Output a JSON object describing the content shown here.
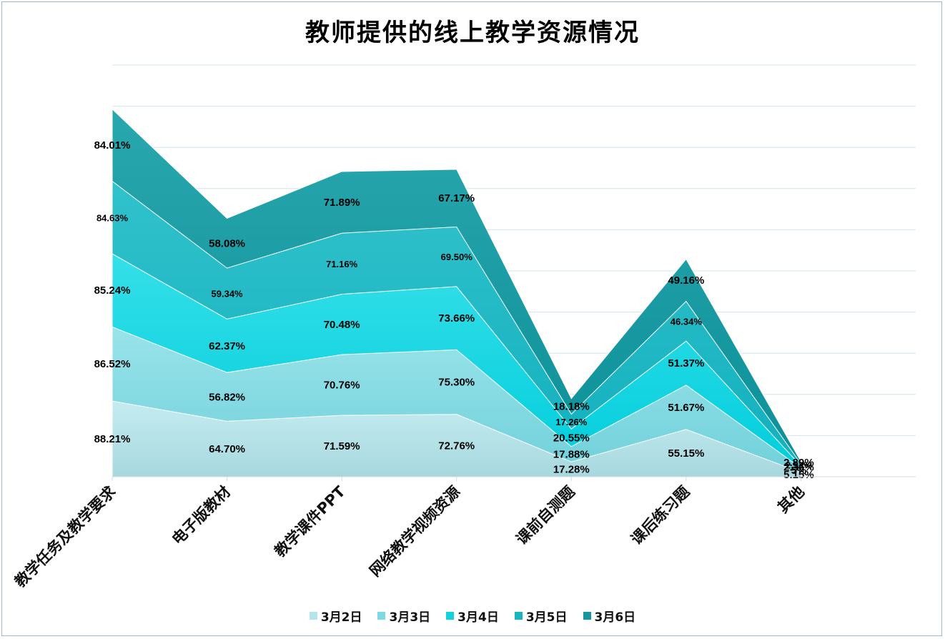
{
  "chart_data": {
    "type": "area",
    "stacked": true,
    "title": "教师提供的线上教学资源情况",
    "categories": [
      "教学任务及教学要求",
      "电子版教材",
      "教学课件PPT",
      "网络教学视频资源",
      "课前自测题",
      "课后练习题",
      "其他"
    ],
    "series": [
      {
        "name": "3月2日",
        "color": "#b5e5ec",
        "values": [
          88.21,
          64.7,
          71.59,
          72.76,
          17.28,
          55.15,
          5.15
        ],
        "labels": [
          "88.21%",
          "64.70%",
          "71.59%",
          "72.76%",
          "17.28%",
          "55.15%",
          "5.15%"
        ]
      },
      {
        "name": "3月3日",
        "color": "#7fd9e2",
        "values": [
          86.52,
          56.82,
          70.76,
          75.3,
          17.88,
          51.67,
          5.0
        ],
        "labels": [
          "86.52%",
          "56.82%",
          "70.76%",
          "75.30%",
          "17.88%",
          "51.67%",
          "5%"
        ]
      },
      {
        "name": "3月4日",
        "color": "#12d2e0",
        "values": [
          85.24,
          62.37,
          70.48,
          73.66,
          20.55,
          51.37,
          2.36
        ],
        "labels": [
          "85.24%",
          "62.37%",
          "70.48%",
          "73.66%",
          "20.55%",
          "51.37%",
          "2.36%"
        ]
      },
      {
        "name": "3月5日",
        "color": "#1ab5c2",
        "values": [
          84.63,
          59.34,
          71.16,
          69.5,
          17.26,
          46.34,
          2.53
        ],
        "labels": [
          "84.63%",
          "59.34%",
          "71.16%",
          "69.50%",
          "17.26%",
          "46.34%",
          "2.53%"
        ]
      },
      {
        "name": "3月6日",
        "color": "#16969f",
        "values": [
          84.01,
          58.08,
          71.89,
          67.17,
          18.18,
          49.16,
          2.89
        ],
        "labels": [
          "84.01%",
          "58.08%",
          "71.89%",
          "67.17%",
          "18.18%",
          "49.16%",
          "2.89%"
        ]
      }
    ],
    "ylim": [
      0,
      480
    ],
    "grid": true,
    "legend": "bottom"
  }
}
